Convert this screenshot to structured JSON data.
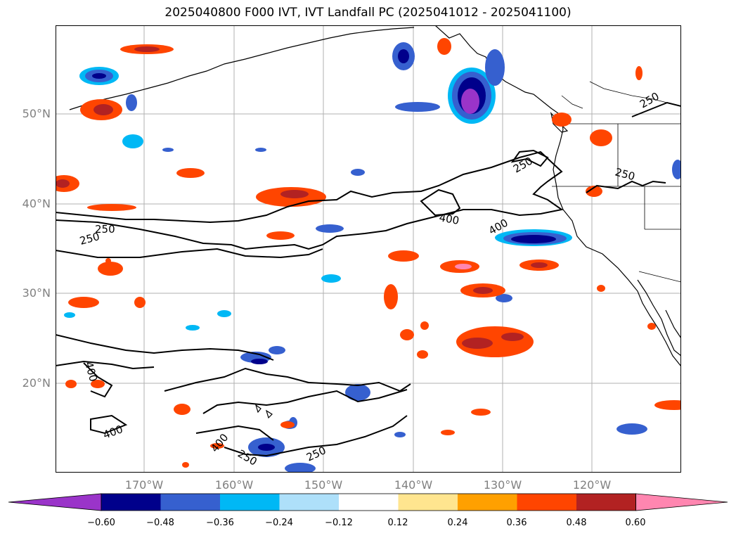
{
  "title": "2025040800 F000 IVT, IVT Landfall PC (2025041012 - 2025041100)",
  "lat_labels": [
    "50°N",
    "40°N",
    "30°N",
    "20°N"
  ],
  "lon_labels": [
    "170°W",
    "160°W",
    "150°W",
    "140°W",
    "130°W",
    "120°W"
  ],
  "contour_labels": [
    "250",
    "250",
    "250",
    "250",
    "250",
    "250",
    "250",
    "400",
    "400",
    "400",
    "400",
    "400"
  ],
  "colorbar": {
    "ticks": [
      "−0.60",
      "−0.48",
      "−0.36",
      "−0.24",
      "−0.12",
      "0.12",
      "0.24",
      "0.36",
      "0.48",
      "0.60"
    ],
    "colors": [
      "#9a34c9",
      "#00008b",
      "#3660cf",
      "#00b8f5",
      "#aee0fa",
      "#ffffff",
      "#ffe58f",
      "#ffa000",
      "#ff4500",
      "#b22222",
      "#ff86b0"
    ]
  },
  "palette": {
    "purple": "#9a34c9",
    "navy": "#00008b",
    "blue": "#3660cf",
    "cyan": "#00b8f5",
    "lightblue": "#aee0fa",
    "yellow": "#ffe58f",
    "orange": "#ffa000",
    "red": "#ff4500",
    "darkred": "#b22222",
    "pink": "#ff86b0"
  }
}
